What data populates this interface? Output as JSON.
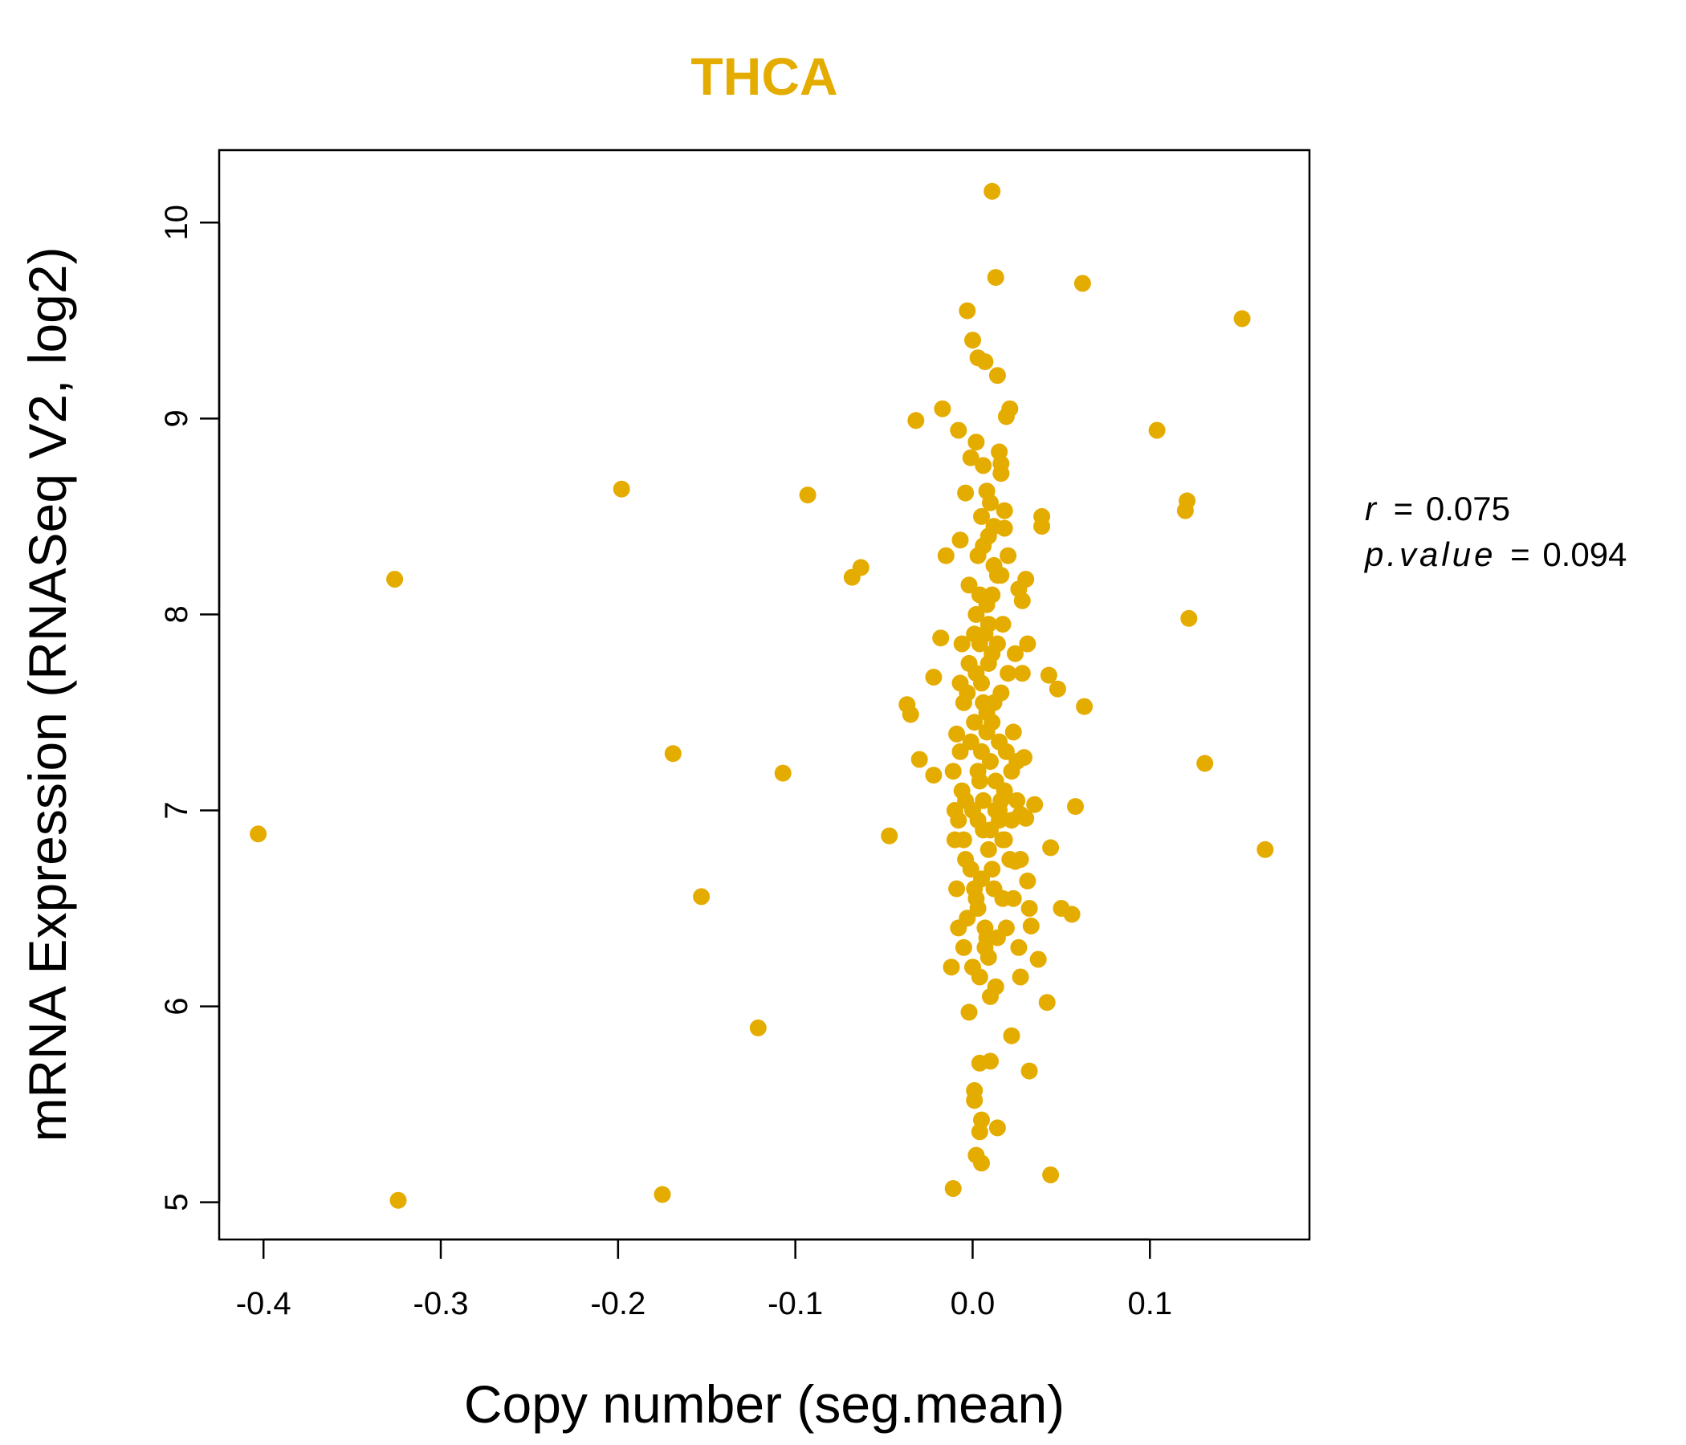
{
  "chart_data": {
    "type": "scatter",
    "title": "THCA",
    "xlabel": "Copy number (seg.mean)",
    "ylabel": "mRNA Expression (RNASeq V2, log2)",
    "xlim": [
      -0.425,
      0.19
    ],
    "ylim": [
      4.81,
      10.37
    ],
    "xticks": [
      -0.4,
      -0.3,
      -0.2,
      -0.1,
      0.0,
      0.1
    ],
    "xtick_labels": [
      "-0.4",
      "-0.3",
      "-0.2",
      "-0.1",
      "0.0",
      "0.1"
    ],
    "yticks": [
      5,
      6,
      7,
      8,
      9,
      10
    ],
    "ytick_labels": [
      "5",
      "6",
      "7",
      "8",
      "9",
      "10"
    ],
    "point_color": "#E5AC00",
    "title_color": "#E5AC00",
    "stats": {
      "r_label": "r",
      "r_value": "0.075",
      "p_label": "p.value",
      "p_value": "0.094",
      "equals": "="
    },
    "points": [
      [
        -0.403,
        6.88
      ],
      [
        -0.326,
        8.18
      ],
      [
        -0.324,
        5.01
      ],
      [
        -0.198,
        8.64
      ],
      [
        -0.175,
        5.04
      ],
      [
        -0.169,
        7.29
      ],
      [
        -0.153,
        6.56
      ],
      [
        -0.121,
        5.89
      ],
      [
        -0.107,
        7.19
      ],
      [
        -0.093,
        8.61
      ],
      [
        -0.068,
        8.19
      ],
      [
        -0.063,
        8.24
      ],
      [
        -0.047,
        6.87
      ],
      [
        -0.037,
        7.54
      ],
      [
        -0.035,
        7.49
      ],
      [
        -0.032,
        8.99
      ],
      [
        -0.03,
        7.26
      ],
      [
        -0.022,
        7.68
      ],
      [
        -0.022,
        7.18
      ],
      [
        -0.018,
        7.88
      ],
      [
        -0.017,
        9.05
      ],
      [
        -0.015,
        8.3
      ],
      [
        -0.012,
        6.2
      ],
      [
        -0.011,
        5.07
      ],
      [
        -0.009,
        7.39
      ],
      [
        -0.008,
        8.94
      ],
      [
        -0.007,
        8.38
      ],
      [
        -0.005,
        6.3
      ],
      [
        -0.004,
        8.62
      ],
      [
        -0.003,
        9.55
      ],
      [
        -0.002,
        5.97
      ],
      [
        -0.001,
        8.8
      ],
      [
        0.0,
        9.4
      ],
      [
        0.001,
        5.57
      ],
      [
        0.001,
        5.52
      ],
      [
        0.002,
        5.24
      ],
      [
        0.002,
        8.88
      ],
      [
        0.003,
        9.31
      ],
      [
        0.004,
        5.71
      ],
      [
        0.004,
        5.36
      ],
      [
        0.005,
        5.2
      ],
      [
        0.005,
        5.42
      ],
      [
        0.006,
        8.76
      ],
      [
        0.007,
        9.29
      ],
      [
        0.008,
        8.63
      ],
      [
        0.01,
        5.72
      ],
      [
        0.01,
        8.57
      ],
      [
        0.011,
        10.16
      ],
      [
        0.013,
        9.72
      ],
      [
        0.014,
        9.22
      ],
      [
        0.014,
        5.38
      ],
      [
        0.015,
        8.83
      ],
      [
        0.016,
        8.72
      ],
      [
        0.016,
        8.77
      ],
      [
        0.018,
        8.53
      ],
      [
        0.018,
        8.44
      ],
      [
        0.019,
        9.01
      ],
      [
        0.021,
        9.05
      ],
      [
        0.022,
        5.85
      ],
      [
        0.024,
        6.74
      ],
      [
        0.026,
        8.13
      ],
      [
        0.027,
        6.98
      ],
      [
        0.028,
        8.07
      ],
      [
        0.029,
        7.27
      ],
      [
        0.03,
        8.18
      ],
      [
        0.03,
        6.96
      ],
      [
        0.031,
        7.85
      ],
      [
        0.031,
        6.64
      ],
      [
        0.032,
        5.67
      ],
      [
        0.032,
        6.5
      ],
      [
        0.033,
        6.41
      ],
      [
        0.035,
        7.03
      ],
      [
        0.037,
        6.24
      ],
      [
        0.039,
        8.45
      ],
      [
        0.039,
        8.5
      ],
      [
        0.042,
        6.02
      ],
      [
        0.043,
        7.69
      ],
      [
        0.044,
        6.81
      ],
      [
        0.044,
        5.14
      ],
      [
        0.048,
        7.62
      ],
      [
        0.05,
        6.5
      ],
      [
        0.056,
        6.47
      ],
      [
        0.058,
        7.02
      ],
      [
        0.062,
        9.69
      ],
      [
        0.063,
        7.53
      ],
      [
        0.104,
        8.94
      ],
      [
        0.12,
        8.53
      ],
      [
        0.121,
        8.58
      ],
      [
        0.122,
        7.98
      ],
      [
        0.131,
        7.24
      ],
      [
        0.152,
        9.51
      ],
      [
        0.165,
        6.8
      ],
      [
        0.009,
        7.95
      ],
      [
        0.003,
        7.2
      ],
      [
        -0.005,
        6.85
      ],
      [
        0.012,
        7.55
      ],
      [
        0.006,
        7.05
      ],
      [
        -0.002,
        7.75
      ],
      [
        0.015,
        6.95
      ],
      [
        0.001,
        6.6
      ],
      [
        0.008,
        7.4
      ],
      [
        -0.006,
        7.1
      ],
      [
        0.019,
        7.3
      ],
      [
        0.004,
        8.1
      ],
      [
        0.011,
        6.7
      ],
      [
        -0.003,
        7.6
      ],
      [
        0.007,
        6.4
      ],
      [
        0.014,
        7.85
      ],
      [
        0.0,
        7.0
      ],
      [
        0.01,
        7.25
      ],
      [
        -0.008,
        6.95
      ],
      [
        0.005,
        7.65
      ],
      [
        0.017,
        6.55
      ],
      [
        0.002,
        8.0
      ],
      [
        0.013,
        7.15
      ],
      [
        -0.004,
        6.75
      ],
      [
        0.009,
        6.25
      ],
      [
        0.02,
        7.7
      ],
      [
        0.006,
        6.9
      ],
      [
        -0.001,
        7.35
      ],
      [
        0.012,
        8.25
      ],
      [
        0.003,
        6.5
      ],
      [
        0.016,
        7.05
      ],
      [
        0.008,
        7.5
      ],
      [
        -0.007,
        7.3
      ],
      [
        0.004,
        6.15
      ],
      [
        0.011,
        7.8
      ],
      [
        0.018,
        6.85
      ],
      [
        0.001,
        7.45
      ],
      [
        0.014,
        6.35
      ],
      [
        -0.002,
        8.15
      ],
      [
        0.007,
        7.9
      ],
      [
        0.022,
        7.2
      ],
      [
        0.005,
        6.65
      ],
      [
        0.01,
        6.05
      ],
      [
        -0.005,
        7.55
      ],
      [
        0.013,
        7.0
      ],
      [
        0.002,
        7.7
      ],
      [
        0.017,
        7.95
      ],
      [
        0.009,
        6.8
      ],
      [
        -0.003,
        6.45
      ],
      [
        0.006,
        8.35
      ],
      [
        0.015,
        7.35
      ],
      [
        0.0,
        6.2
      ],
      [
        0.012,
        6.6
      ],
      [
        0.004,
        7.15
      ],
      [
        0.019,
        6.4
      ],
      [
        0.008,
        8.05
      ],
      [
        -0.006,
        7.85
      ],
      [
        0.011,
        7.45
      ],
      [
        0.003,
        6.95
      ],
      [
        0.016,
        7.6
      ],
      [
        0.007,
        6.3
      ],
      [
        0.021,
        6.75
      ],
      [
        0.001,
        7.9
      ],
      [
        0.014,
        8.2
      ],
      [
        -0.004,
        7.05
      ],
      [
        0.01,
        6.9
      ],
      [
        0.005,
        7.3
      ],
      [
        0.018,
        7.1
      ],
      [
        0.009,
        7.75
      ],
      [
        -0.001,
        6.7
      ],
      [
        0.013,
        6.1
      ],
      [
        0.006,
        7.55
      ],
      [
        0.023,
        7.4
      ],
      [
        0.002,
        6.55
      ],
      [
        0.015,
        7.0
      ],
      [
        0.008,
        6.35
      ],
      [
        -0.007,
        7.65
      ],
      [
        0.011,
        8.1
      ],
      [
        0.004,
        7.85
      ],
      [
        0.017,
        6.85
      ],
      [
        0.02,
        8.3
      ],
      [
        0.025,
        7.25
      ],
      [
        0.027,
        6.75
      ],
      [
        0.024,
        7.8
      ],
      [
        0.026,
        6.3
      ],
      [
        0.028,
        7.7
      ],
      [
        0.023,
        6.55
      ],
      [
        0.025,
        7.05
      ],
      [
        0.027,
        6.15
      ],
      [
        0.022,
        6.95
      ],
      [
        -0.01,
        7.0
      ],
      [
        -0.009,
        6.6
      ],
      [
        -0.011,
        7.2
      ],
      [
        -0.008,
        6.4
      ],
      [
        -0.01,
        6.85
      ],
      [
        0.012,
        8.45
      ],
      [
        0.005,
        8.5
      ],
      [
        0.009,
        8.4
      ],
      [
        0.003,
        8.3
      ],
      [
        0.016,
        8.2
      ]
    ]
  }
}
